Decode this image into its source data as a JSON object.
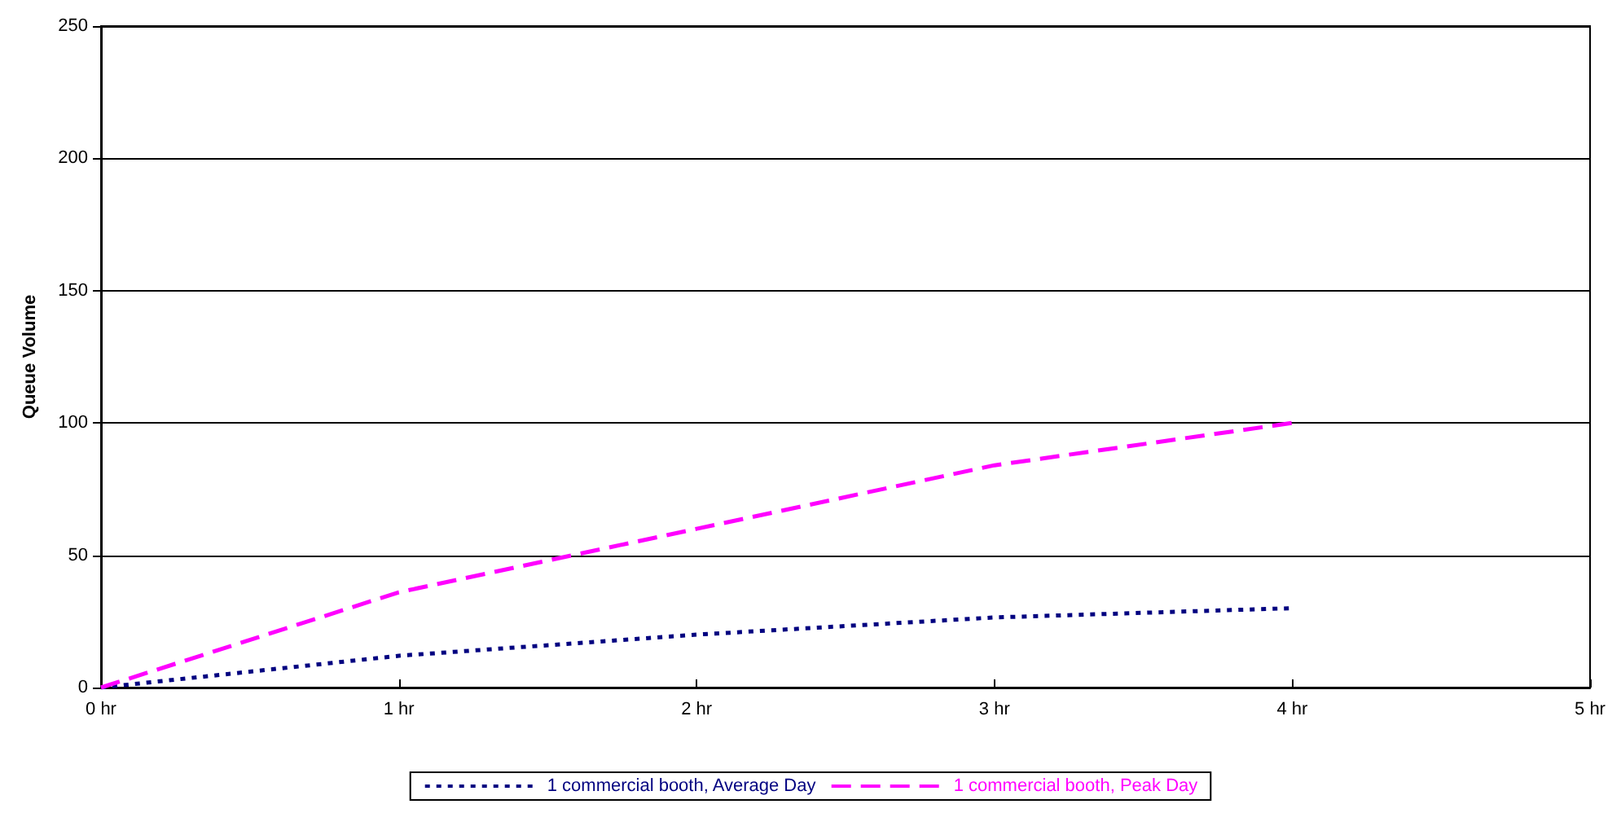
{
  "chart_data": {
    "type": "line",
    "ylabel": "Queue Volume",
    "x": [
      0,
      1,
      2,
      3,
      4
    ],
    "series": [
      {
        "name": "1 commercial booth, Average Day",
        "color": "#000080",
        "line_style": "dotted",
        "values": [
          0,
          12,
          20,
          26.5,
          30
        ]
      },
      {
        "name": "1 commercial booth, Peak Day",
        "color": "#ff00ff",
        "line_style": "dashed",
        "values": [
          0,
          36,
          60,
          84,
          100
        ]
      }
    ],
    "xlim": [
      0,
      5
    ],
    "xticks": [
      {
        "value": 0,
        "label": "0 hr"
      },
      {
        "value": 1,
        "label": "1 hr"
      },
      {
        "value": 2,
        "label": "2 hr"
      },
      {
        "value": 3,
        "label": "3 hr"
      },
      {
        "value": 4,
        "label": "4 hr"
      },
      {
        "value": 5,
        "label": "5 hr"
      }
    ],
    "ylim": [
      0,
      250
    ],
    "yticks": [
      0,
      50,
      100,
      150,
      200,
      250
    ],
    "grid": "y",
    "legend": "bottom",
    "marker": "none"
  }
}
